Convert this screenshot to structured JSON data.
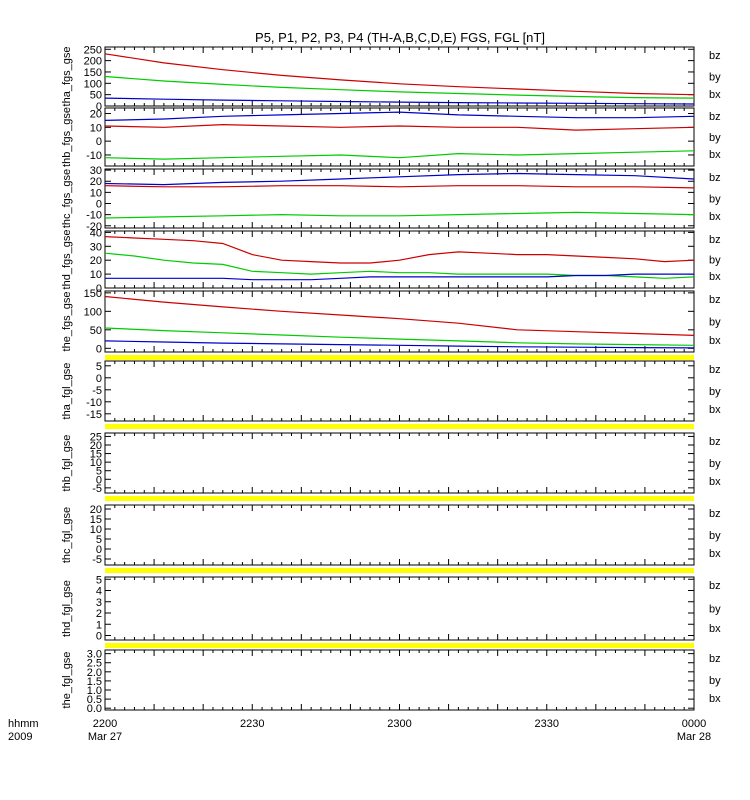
{
  "title": "P5, P1, P2, P3, P4 (TH-A,B,C,D,E) FGS, FGL [nT]",
  "colors": {
    "bz": "#cc0000",
    "by": "#00cc00",
    "bx": "#0000cc",
    "frame": "#000000",
    "no_data": "#ffff00"
  },
  "x_axis": {
    "left_labels": [
      "hhmm",
      "2009"
    ],
    "ticks": [
      {
        "time": "2200",
        "date": "Mar 27"
      },
      {
        "time": "2230",
        "date": ""
      },
      {
        "time": "2300",
        "date": ""
      },
      {
        "time": "2330",
        "date": ""
      },
      {
        "time": "0000",
        "date": "Mar 28"
      }
    ]
  },
  "chart_data": [
    {
      "type": "line",
      "ylabel": "tha_fgs_gse",
      "ylim": [
        0,
        260
      ],
      "ticks": [
        "250",
        "200",
        "150",
        "100",
        "50",
        "0"
      ],
      "tick_values": [
        250,
        200,
        150,
        100,
        50,
        0
      ],
      "legend": [
        "bz",
        "by",
        "bx"
      ],
      "no_data_bar": false,
      "x": [
        0,
        0.1,
        0.2,
        0.3,
        0.4,
        0.5,
        0.6,
        0.7,
        0.8,
        0.9,
        1
      ],
      "series": [
        {
          "name": "bz",
          "values": [
            230,
            190,
            160,
            135,
            115,
            98,
            85,
            75,
            65,
            55,
            50
          ]
        },
        {
          "name": "by",
          "values": [
            130,
            110,
            95,
            82,
            72,
            62,
            55,
            48,
            42,
            37,
            35
          ]
        },
        {
          "name": "bx",
          "values": [
            35,
            30,
            26,
            23,
            20,
            17,
            15,
            13,
            12,
            10,
            9
          ]
        }
      ]
    },
    {
      "type": "line",
      "ylabel": "thb_fgs_gse",
      "ylim": [
        -18,
        24
      ],
      "ticks": [
        "20",
        "10",
        "0",
        "-10"
      ],
      "tick_values": [
        20,
        10,
        0,
        -10
      ],
      "legend": [
        "bz",
        "by",
        "bx"
      ],
      "no_data_bar": false,
      "x": [
        0,
        0.1,
        0.2,
        0.3,
        0.4,
        0.5,
        0.6,
        0.7,
        0.8,
        0.9,
        1
      ],
      "series": [
        {
          "name": "bz",
          "values": [
            11,
            10,
            12,
            11,
            10,
            11,
            10,
            10,
            8,
            9,
            10
          ]
        },
        {
          "name": "by",
          "values": [
            -12,
            -13,
            -12,
            -11,
            -10,
            -12,
            -9,
            -10,
            -9,
            -8,
            -7
          ]
        },
        {
          "name": "bx",
          "values": [
            15,
            16,
            18,
            19,
            20,
            21,
            19,
            18,
            17,
            17,
            18
          ]
        }
      ]
    },
    {
      "type": "line",
      "ylabel": "thc_fgs_gse",
      "ylim": [
        -22,
        31
      ],
      "ticks": [
        "30",
        "20",
        "10",
        "0",
        "-10",
        "-20"
      ],
      "tick_values": [
        30,
        20,
        10,
        0,
        -10,
        -20
      ],
      "legend": [
        "bz",
        "by",
        "bx"
      ],
      "no_data_bar": false,
      "x": [
        0,
        0.1,
        0.2,
        0.3,
        0.4,
        0.5,
        0.6,
        0.7,
        0.8,
        0.9,
        1
      ],
      "series": [
        {
          "name": "bz",
          "values": [
            16,
            15,
            15,
            16,
            16,
            15,
            16,
            16,
            15,
            15,
            14
          ]
        },
        {
          "name": "by",
          "values": [
            -13,
            -12,
            -11,
            -10,
            -11,
            -11,
            -10,
            -9,
            -8,
            -9,
            -10
          ]
        },
        {
          "name": "bx",
          "values": [
            18,
            17,
            19,
            20,
            22,
            24,
            26,
            27,
            26,
            25,
            22
          ]
        }
      ]
    },
    {
      "type": "line",
      "ylabel": "thd_fgs_gse",
      "ylim": [
        0,
        41
      ],
      "ticks": [
        "40",
        "30",
        "20",
        "10",
        "0"
      ],
      "tick_values": [
        40,
        30,
        20,
        10,
        0
      ],
      "legend": [
        "bz",
        "by",
        "bx"
      ],
      "no_data_bar": false,
      "x": [
        0,
        0.05,
        0.1,
        0.15,
        0.2,
        0.25,
        0.3,
        0.35,
        0.4,
        0.45,
        0.5,
        0.55,
        0.6,
        0.65,
        0.7,
        0.75,
        0.8,
        0.85,
        0.9,
        0.95,
        1
      ],
      "series": [
        {
          "name": "bz",
          "values": [
            37,
            36,
            35,
            34,
            32,
            24,
            20,
            19,
            18,
            18,
            20,
            24,
            26,
            25,
            24,
            24,
            23,
            22,
            21,
            19,
            20
          ]
        },
        {
          "name": "by",
          "values": [
            25,
            23,
            20,
            18,
            17,
            12,
            11,
            10,
            11,
            12,
            11,
            11,
            10,
            10,
            10,
            10,
            9,
            9,
            8,
            7,
            8
          ]
        },
        {
          "name": "bx",
          "values": [
            7,
            7,
            7,
            7,
            7,
            6,
            6,
            6,
            7,
            8,
            8,
            8,
            8,
            8,
            8,
            8,
            9,
            9,
            10,
            10,
            10
          ]
        }
      ]
    },
    {
      "type": "line",
      "ylabel": "the_fgs_gse",
      "ylim": [
        -10,
        155
      ],
      "ticks": [
        "150",
        "100",
        "50",
        "0"
      ],
      "tick_values": [
        150,
        100,
        50,
        0
      ],
      "legend": [
        "bz",
        "by",
        "bx"
      ],
      "no_data_bar": true,
      "x": [
        0,
        0.1,
        0.2,
        0.3,
        0.4,
        0.5,
        0.6,
        0.7,
        0.8,
        0.9,
        1
      ],
      "series": [
        {
          "name": "bz",
          "values": [
            140,
            125,
            112,
            100,
            90,
            80,
            68,
            50,
            45,
            40,
            35
          ]
        },
        {
          "name": "by",
          "values": [
            55,
            48,
            42,
            36,
            30,
            25,
            20,
            15,
            12,
            10,
            8
          ]
        },
        {
          "name": "bx",
          "values": [
            20,
            17,
            14,
            12,
            10,
            8,
            6,
            4,
            3,
            2,
            1
          ]
        }
      ]
    },
    {
      "type": "line",
      "ylabel": "tha_fgl_gse",
      "ylim": [
        -18,
        7
      ],
      "ticks": [
        "5",
        "0",
        "-5",
        "-10",
        "-15"
      ],
      "tick_values": [
        5,
        0,
        -5,
        -10,
        -15
      ],
      "legend": [
        "bz",
        "by",
        "bx"
      ],
      "no_data_bar": true,
      "x": [],
      "series": []
    },
    {
      "type": "line",
      "ylabel": "thb_fgl_gse",
      "ylim": [
        -8,
        27
      ],
      "ticks": [
        "25",
        "20",
        "15",
        "10",
        "5",
        "0",
        "-5"
      ],
      "tick_values": [
        25,
        20,
        15,
        10,
        5,
        0,
        -5
      ],
      "legend": [
        "bz",
        "by",
        "bx"
      ],
      "no_data_bar": true,
      "x": [],
      "series": []
    },
    {
      "type": "line",
      "ylabel": "thc_fgl_gse",
      "ylim": [
        -8,
        22
      ],
      "ticks": [
        "20",
        "15",
        "10",
        "5",
        "0",
        "-5"
      ],
      "tick_values": [
        20,
        15,
        10,
        5,
        0,
        -5
      ],
      "legend": [
        "bz",
        "by",
        "bx"
      ],
      "no_data_bar": true,
      "x": [],
      "series": []
    },
    {
      "type": "line",
      "ylabel": "thd_fgl_gse",
      "ylim": [
        -0.4,
        5.2
      ],
      "ticks": [
        "5",
        "4",
        "3",
        "2",
        "1",
        "0"
      ],
      "tick_values": [
        5,
        4,
        3,
        2,
        1,
        0
      ],
      "legend": [
        "bz",
        "by",
        "bx"
      ],
      "no_data_bar": true,
      "x": [],
      "series": []
    },
    {
      "type": "line",
      "ylabel": "the_fgl_gse",
      "ylim": [
        -0.1,
        3.2
      ],
      "ticks": [
        "3.0",
        "2.5",
        "2.0",
        "1.5",
        "1.0",
        "0.5",
        "0.0"
      ],
      "tick_values": [
        3.0,
        2.5,
        2.0,
        1.5,
        1.0,
        0.5,
        0.0
      ],
      "legend": [
        "bz",
        "by",
        "bx"
      ],
      "no_data_bar": false,
      "x": [],
      "series": []
    }
  ]
}
